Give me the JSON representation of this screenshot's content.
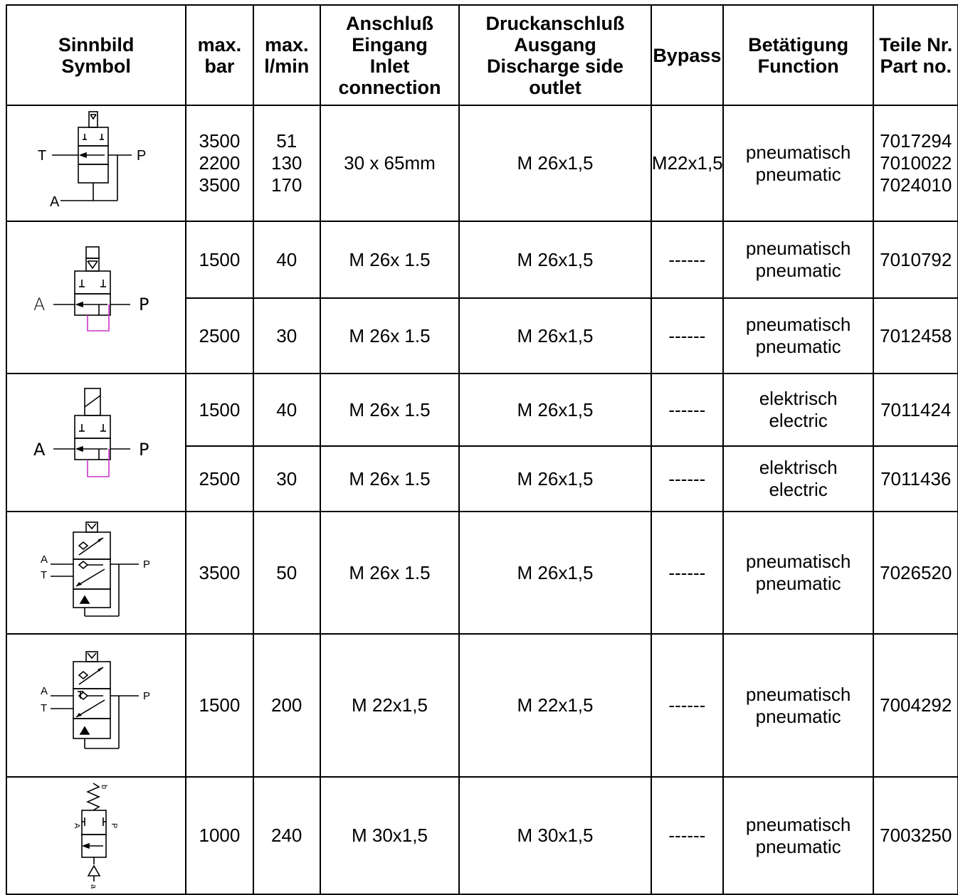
{
  "headers": {
    "symbol": [
      "Sinnbild",
      "Symbol"
    ],
    "bar": [
      "max.",
      "bar"
    ],
    "lmin": [
      "max.",
      "l/min"
    ],
    "inlet": [
      "Anschluß",
      "Eingang",
      "Inlet",
      "connection"
    ],
    "outlet": [
      "Druckanschluß",
      "Ausgang",
      "Discharge side",
      "outlet"
    ],
    "bypass": [
      "Bypass"
    ],
    "function": [
      "Betätigung",
      "Function"
    ],
    "part": [
      "Teile Nr.",
      "Part no."
    ]
  },
  "rows": [
    {
      "bar": [
        "3500",
        "2200",
        "3500"
      ],
      "lmin": [
        "51",
        "130",
        "170"
      ],
      "inlet": "30 x 65mm",
      "outlet": "M 26x1,5",
      "bypass": "M22x1,5",
      "function": [
        "pneumatisch",
        "pneumatic"
      ],
      "part": [
        "7017294",
        "7010022",
        "7024010"
      ]
    },
    {
      "bar": [
        "1500"
      ],
      "lmin": [
        "40"
      ],
      "inlet": "M 26x 1.5",
      "outlet": "M 26x1,5",
      "bypass": "------",
      "function": [
        "pneumatisch",
        "pneumatic"
      ],
      "part": [
        "7010792"
      ]
    },
    {
      "bar": [
        "2500"
      ],
      "lmin": [
        "30"
      ],
      "inlet": "M 26x 1.5",
      "outlet": "M 26x1,5",
      "bypass": "------",
      "function": [
        "pneumatisch",
        "pneumatic"
      ],
      "part": [
        "7012458"
      ]
    },
    {
      "bar": [
        "1500"
      ],
      "lmin": [
        "40"
      ],
      "inlet": "M 26x 1.5",
      "outlet": "M 26x1,5",
      "bypass": "------",
      "function": [
        "elektrisch",
        "electric"
      ],
      "part": [
        "7011424"
      ]
    },
    {
      "bar": [
        "2500"
      ],
      "lmin": [
        "30"
      ],
      "inlet": "M 26x 1.5",
      "outlet": "M 26x1,5",
      "bypass": "------",
      "function": [
        "elektrisch",
        "electric"
      ],
      "part": [
        "7011436"
      ]
    },
    {
      "bar": [
        "3500"
      ],
      "lmin": [
        "50"
      ],
      "inlet": "M 26x 1.5",
      "outlet": "M 26x1,5",
      "bypass": "------",
      "function": [
        "pneumatisch",
        "pneumatic"
      ],
      "part": [
        "7026520"
      ]
    },
    {
      "bar": [
        "1500"
      ],
      "lmin": [
        "200"
      ],
      "inlet": "M 22x1,5",
      "outlet": "M 22x1,5",
      "bypass": "------",
      "function": [
        "pneumatisch",
        "pneumatic"
      ],
      "part": [
        "7004292"
      ]
    },
    {
      "bar": [
        "1000"
      ],
      "lmin": [
        "240"
      ],
      "inlet": "M 30x1,5",
      "outlet": "M 30x1,5",
      "bypass": "------",
      "function": [
        "pneumatisch",
        "pneumatic"
      ],
      "part": [
        "7003250"
      ]
    }
  ],
  "symbol_labels": {
    "s1": {
      "t": "T",
      "p": "P",
      "a": "A"
    },
    "s2": {
      "a": "A",
      "p": "P"
    },
    "s3": {
      "a": "A",
      "p": "P"
    },
    "s4": {
      "a": "A",
      "t": "T",
      "p": "P"
    },
    "s5": {
      "a": "A",
      "t": "T",
      "p": "P"
    },
    "s6": {
      "a": "A",
      "p": "P",
      "b": "b",
      "a2": "a"
    }
  },
  "colors": {
    "line": "#000000",
    "bypass_loop": "#cc33cc"
  }
}
